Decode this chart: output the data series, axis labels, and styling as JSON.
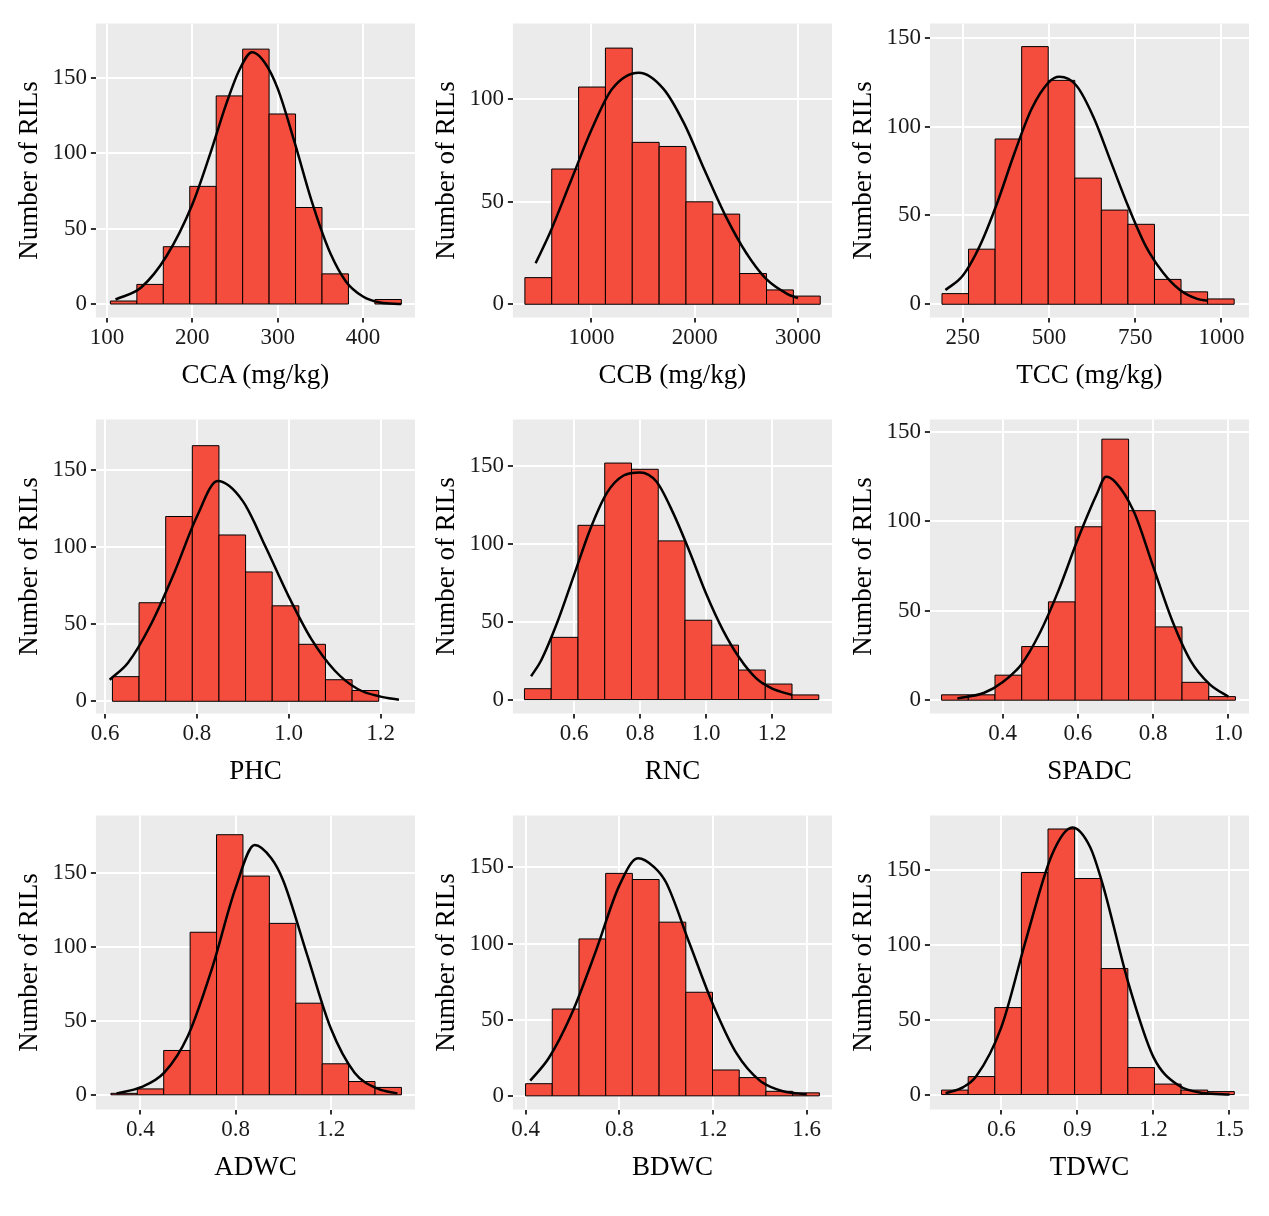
{
  "chart_data": [
    {
      "type": "histogram",
      "xlabel": "CCA (mg/kg)",
      "ylabel": "Number of RILs",
      "color": "#f44c3d",
      "grid": true,
      "xlim": [
        87,
        461
      ],
      "ylim": [
        -9,
        186
      ],
      "xticks": [
        100,
        200,
        300,
        400
      ],
      "yticks": [
        0,
        50,
        100,
        150
      ],
      "bins": [
        104,
        135,
        166,
        197,
        228,
        259,
        290,
        321,
        352,
        383,
        414,
        445
      ],
      "values": [
        2,
        13,
        38,
        78,
        138,
        169,
        126,
        64,
        20,
        0,
        3
      ],
      "series": [
        {
          "type": "line",
          "color": "#000000",
          "x": [
            110,
            140,
            170,
            200,
            220,
            240,
            255,
            270,
            285,
            300,
            320,
            340,
            360,
            380,
            400,
            420,
            445
          ],
          "values": [
            3,
            11,
            32,
            66,
            98,
            133,
            155,
            167,
            160,
            143,
            107,
            68,
            36,
            15,
            5,
            1,
            0
          ]
        }
      ]
    },
    {
      "type": "histogram",
      "xlabel": "CCB (mg/kg)",
      "ylabel": "Number of RILs",
      "color": "#f44c3d",
      "grid": true,
      "xlim": [
        240,
        3330
      ],
      "ylim": [
        -6.5,
        137
      ],
      "xticks": [
        1000,
        2000,
        3000
      ],
      "yticks": [
        0,
        50,
        100
      ],
      "bins": [
        356,
        616,
        876,
        1136,
        1396,
        1656,
        1916,
        2176,
        2436,
        2696,
        2956,
        3216
      ],
      "values": [
        13,
        66,
        106,
        125,
        79,
        77,
        50,
        44,
        15,
        7,
        4
      ],
      "series": [
        {
          "type": "line",
          "color": "#000000",
          "x": [
            460,
            600,
            800,
            1000,
            1200,
            1460,
            1700,
            1900,
            2100,
            2300,
            2500,
            2700,
            2900,
            3000
          ],
          "values": [
            20,
            35,
            60,
            85,
            105,
            113,
            105,
            88,
            65,
            43,
            25,
            12,
            5,
            3
          ]
        }
      ]
    },
    {
      "type": "histogram",
      "xlabel": "TCC (mg/kg)",
      "ylabel": "Number of RILs",
      "color": "#f44c3d",
      "grid": true,
      "xlim": [
        155,
        1080
      ],
      "ylim": [
        -7.5,
        158
      ],
      "xticks": [
        250,
        500,
        750,
        1000
      ],
      "yticks": [
        0,
        50,
        100,
        150
      ],
      "bins": [
        190,
        267,
        344,
        421,
        498,
        575,
        652,
        729,
        806,
        883,
        960,
        1037
      ],
      "values": [
        6,
        31,
        93,
        145,
        126,
        71,
        53,
        45,
        14,
        7,
        3
      ],
      "series": [
        {
          "type": "line",
          "color": "#000000",
          "x": [
            200,
            250,
            300,
            350,
            400,
            450,
            500,
            530,
            580,
            630,
            680,
            730,
            780,
            830,
            880,
            930,
            960
          ],
          "values": [
            8,
            16,
            33,
            57,
            85,
            110,
            125,
            128,
            123,
            105,
            80,
            55,
            33,
            18,
            8,
            3,
            2
          ]
        }
      ]
    },
    {
      "type": "histogram",
      "xlabel": "PHC",
      "ylabel": "Number of RILs",
      "color": "#f44c3d",
      "grid": true,
      "xlim": [
        0.58,
        1.275
      ],
      "ylim": [
        -8,
        183
      ],
      "xticks": [
        {
          "value": 0.6,
          "label": "0.6"
        },
        {
          "value": 0.8,
          "label": "0.8"
        },
        {
          "value": 1,
          "label": "1.0"
        },
        {
          "value": 1.2,
          "label": "1.2"
        }
      ],
      "yticks": [
        0,
        50,
        100,
        150
      ],
      "bins": [
        0.616,
        0.674,
        0.732,
        0.79,
        0.848,
        0.906,
        0.964,
        1.022,
        1.08,
        1.138,
        1.196
      ],
      "values": [
        16,
        64,
        120,
        166,
        108,
        84,
        62,
        37,
        14,
        7
      ],
      "series": [
        {
          "type": "line",
          "color": "#000000",
          "x": [
            0.61,
            0.65,
            0.7,
            0.75,
            0.8,
            0.845,
            0.9,
            0.95,
            1,
            1.05,
            1.1,
            1.15,
            1.2,
            1.24
          ],
          "values": [
            14,
            25,
            50,
            83,
            120,
            143,
            130,
            100,
            68,
            40,
            20,
            8,
            3,
            1
          ]
        }
      ]
    },
    {
      "type": "histogram",
      "xlabel": "RNC",
      "ylabel": "Number of RILs",
      "color": "#f44c3d",
      "grid": true,
      "xlim": [
        0.415,
        1.381
      ],
      "ylim": [
        -9,
        180
      ],
      "xticks": [
        0.6,
        0.8,
        {
          "value": 1,
          "label": "1.0"
        },
        1.2
      ],
      "yticks": [
        0,
        50,
        100,
        150
      ],
      "bins": [
        0.45,
        0.531,
        0.612,
        0.693,
        0.774,
        0.855,
        0.936,
        1.017,
        1.098,
        1.179,
        1.26,
        1.341
      ],
      "values": [
        7,
        40,
        112,
        152,
        148,
        102,
        51,
        35,
        19,
        10,
        3
      ],
      "series": [
        {
          "type": "line",
          "color": "#000000",
          "x": [
            0.47,
            0.5,
            0.55,
            0.6,
            0.65,
            0.7,
            0.75,
            0.8,
            0.85,
            0.9,
            0.95,
            1,
            1.05,
            1.1,
            1.15,
            1.2,
            1.26
          ],
          "values": [
            15,
            25,
            50,
            80,
            110,
            133,
            144,
            146,
            140,
            120,
            95,
            68,
            45,
            27,
            14,
            7,
            3
          ]
        }
      ]
    },
    {
      "type": "histogram",
      "xlabel": "SPADC",
      "ylabel": "Number of RILs",
      "color": "#f44c3d",
      "grid": true,
      "xlim": [
        0.207,
        1.055
      ],
      "ylim": [
        -7.5,
        157
      ],
      "xticks": [
        0.4,
        0.6,
        0.8,
        {
          "value": 1,
          "label": "1.0"
        }
      ],
      "yticks": [
        0,
        50,
        100,
        150
      ],
      "bins": [
        0.238,
        0.309,
        0.38,
        0.451,
        0.522,
        0.593,
        0.664,
        0.735,
        0.806,
        0.877,
        0.948,
        1.019
      ],
      "values": [
        3,
        3,
        14,
        30,
        55,
        97,
        146,
        106,
        41,
        10,
        2
      ],
      "series": [
        {
          "type": "line",
          "color": "#000000",
          "x": [
            0.28,
            0.35,
            0.4,
            0.45,
            0.5,
            0.55,
            0.6,
            0.65,
            0.675,
            0.7,
            0.75,
            0.8,
            0.85,
            0.9,
            0.95,
            1
          ],
          "values": [
            1,
            4,
            10,
            20,
            38,
            62,
            90,
            115,
            125,
            122,
            105,
            75,
            45,
            22,
            9,
            2
          ]
        }
      ]
    },
    {
      "type": "histogram",
      "xlabel": "ADWC",
      "ylabel": "Number of RILs",
      "color": "#f44c3d",
      "grid": true,
      "xlim": [
        0.213,
        1.554
      ],
      "ylim": [
        -10,
        189
      ],
      "xticks": [
        0.4,
        0.8,
        1.2
      ],
      "yticks": [
        0,
        50,
        100,
        150
      ],
      "bins": [
        0.276,
        0.387,
        0.498,
        0.609,
        0.72,
        0.831,
        0.942,
        1.053,
        1.164,
        1.275,
        1.386,
        1.497
      ],
      "values": [
        1,
        4,
        30,
        110,
        176,
        148,
        116,
        62,
        21,
        9,
        5
      ],
      "series": [
        {
          "type": "line",
          "color": "#000000",
          "x": [
            0.3,
            0.4,
            0.5,
            0.6,
            0.7,
            0.8,
            0.88,
            0.95,
            1,
            1.1,
            1.2,
            1.3,
            1.4,
            1.48
          ],
          "values": [
            1,
            5,
            15,
            40,
            85,
            140,
            169,
            160,
            145,
            95,
            45,
            15,
            4,
            1
          ]
        }
      ]
    },
    {
      "type": "histogram",
      "xlabel": "BDWC",
      "ylabel": "Number of RILs",
      "color": "#f44c3d",
      "grid": true,
      "xlim": [
        0.346,
        1.708
      ],
      "ylim": [
        -9,
        184
      ],
      "xticks": [
        0.4,
        0.8,
        1.2,
        1.6
      ],
      "yticks": [
        0,
        50,
        100,
        150
      ],
      "bins": [
        0.4,
        0.514,
        0.628,
        0.742,
        0.856,
        0.97,
        1.084,
        1.198,
        1.312,
        1.426,
        1.54,
        1.654
      ],
      "values": [
        8,
        57,
        103,
        146,
        142,
        114,
        68,
        17,
        12,
        3,
        2
      ],
      "series": [
        {
          "type": "line",
          "color": "#000000",
          "x": [
            0.42,
            0.5,
            0.6,
            0.7,
            0.8,
            0.88,
            0.95,
            1,
            1.1,
            1.2,
            1.3,
            1.4,
            1.5,
            1.6
          ],
          "values": [
            10,
            25,
            55,
            95,
            138,
            156,
            150,
            140,
            100,
            60,
            28,
            10,
            3,
            1
          ]
        }
      ]
    },
    {
      "type": "histogram",
      "xlabel": "TDWC",
      "ylabel": "Number of RILs",
      "color": "#f44c3d",
      "grid": true,
      "xlim": [
        0.318,
        1.577
      ],
      "ylim": [
        -10,
        186
      ],
      "xticks": [
        0.6,
        0.9,
        1.2,
        1.5
      ],
      "yticks": [
        0,
        50,
        100,
        150
      ],
      "bins": [
        0.364,
        0.469,
        0.574,
        0.679,
        0.784,
        0.889,
        0.994,
        1.099,
        1.204,
        1.309,
        1.414,
        1.519
      ],
      "values": [
        3,
        12,
        58,
        148,
        177,
        144,
        84,
        18,
        7,
        3,
        2
      ],
      "series": [
        {
          "type": "line",
          "color": "#000000",
          "x": [
            0.38,
            0.45,
            0.5,
            0.6,
            0.7,
            0.8,
            0.88,
            0.95,
            1,
            1.1,
            1.2,
            1.3,
            1.4,
            1.5
          ],
          "values": [
            1,
            5,
            12,
            45,
            105,
            160,
            178,
            165,
            140,
            75,
            25,
            6,
            1,
            0
          ]
        }
      ]
    }
  ]
}
